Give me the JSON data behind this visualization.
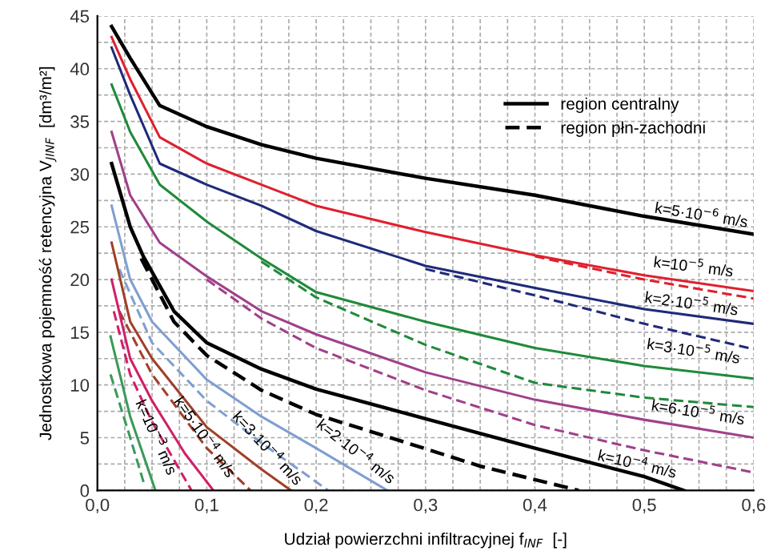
{
  "chart_data": {
    "type": "line",
    "xlabel": "Udział powierzchni infiltracyjnej f$_{INF}$  [-]",
    "ylabel": "Jednostkowa pojemność retencyjna V$_{JINF}$  [dm³/m²]",
    "xlim": [
      0,
      0.6
    ],
    "ylim": [
      0,
      45
    ],
    "xticks": [
      {
        "value": 0,
        "label": "0,0"
      },
      {
        "value": 0.025,
        "label": null
      },
      {
        "value": 0.05,
        "label": null
      },
      {
        "value": 0.075,
        "label": null
      },
      {
        "value": 0.1,
        "label": "0,1"
      },
      {
        "value": 0.125,
        "label": null
      },
      {
        "value": 0.15,
        "label": null
      },
      {
        "value": 0.175,
        "label": null
      },
      {
        "value": 0.2,
        "label": "0,2"
      },
      {
        "value": 0.225,
        "label": null
      },
      {
        "value": 0.25,
        "label": null
      },
      {
        "value": 0.275,
        "label": null
      },
      {
        "value": 0.3,
        "label": "0,3"
      },
      {
        "value": 0.325,
        "label": null
      },
      {
        "value": 0.35,
        "label": null
      },
      {
        "value": 0.375,
        "label": null
      },
      {
        "value": 0.4,
        "label": "0,4"
      },
      {
        "value": 0.425,
        "label": null
      },
      {
        "value": 0.45,
        "label": null
      },
      {
        "value": 0.475,
        "label": null
      },
      {
        "value": 0.5,
        "label": "0,5"
      },
      {
        "value": 0.525,
        "label": null
      },
      {
        "value": 0.55,
        "label": null
      },
      {
        "value": 0.575,
        "label": null
      },
      {
        "value": 0.6,
        "label": "0,6"
      }
    ],
    "yticks": [
      0,
      {
        "value": 2.5,
        "label": null
      },
      5,
      {
        "value": 7.5,
        "label": null
      },
      10,
      {
        "value": 12.5,
        "label": null
      },
      15,
      {
        "value": 17.5,
        "label": null
      },
      20,
      {
        "value": 22.5,
        "label": null
      },
      25,
      {
        "value": 27.5,
        "label": null
      },
      30,
      {
        "value": 32.5,
        "label": null
      },
      35,
      {
        "value": 37.5,
        "label": null
      },
      40,
      {
        "value": 42.5,
        "label": null
      },
      45
    ],
    "grid": true,
    "legend": "top right",
    "series": [
      {
        "name": "region centralny",
        "color": "#000000",
        "line_style": "solid",
        "x": [
          0.013,
          0.03,
          0.057,
          0.1,
          0.15,
          0.2,
          0.3,
          0.4,
          0.5,
          0.6
        ],
        "values": [
          44,
          41,
          36.5,
          34.5,
          32.8,
          31.5,
          29.6,
          28,
          26,
          24.3
        ]
      },
      {
        "color": "#e0202e",
        "line_style": "solid",
        "x": [
          0.013,
          0.03,
          0.057,
          0.1,
          0.15,
          0.2,
          0.3,
          0.4,
          0.5,
          0.6
        ],
        "values": [
          43,
          39,
          33.5,
          31,
          29,
          27,
          24.5,
          22.3,
          20.4,
          18.9
        ]
      },
      {
        "color": "#e0202e",
        "line_style": "dashed",
        "x": [
          0.4,
          0.5,
          0.6
        ],
        "values": [
          22.2,
          20,
          18.2
        ]
      },
      {
        "color": "#1f2a7a",
        "line_style": "solid",
        "x": [
          0.013,
          0.03,
          0.057,
          0.1,
          0.15,
          0.2,
          0.3,
          0.4,
          0.5,
          0.6
        ],
        "values": [
          42,
          37.5,
          31,
          29,
          27,
          24.6,
          21.3,
          19.2,
          17.2,
          15.8
        ]
      },
      {
        "color": "#1f2a7a",
        "line_style": "dashed",
        "x": [
          0.3,
          0.4,
          0.5,
          0.6
        ],
        "values": [
          21,
          18.5,
          15.8,
          13.4
        ]
      },
      {
        "color": "#1f8a3a",
        "line_style": "solid",
        "x": [
          0.013,
          0.03,
          0.057,
          0.1,
          0.15,
          0.2,
          0.3,
          0.4,
          0.5,
          0.6
        ],
        "values": [
          38.5,
          34,
          29,
          25.5,
          22,
          18.8,
          16,
          13.5,
          11.8,
          10.6
        ]
      },
      {
        "color": "#1f8a3a",
        "line_style": "dashed",
        "x": [
          0.15,
          0.2,
          0.3,
          0.4,
          0.5,
          0.6
        ],
        "values": [
          21.7,
          18.3,
          13.8,
          10.2,
          8.8,
          7.9
        ]
      },
      {
        "color": "#a0408a",
        "line_style": "solid",
        "x": [
          0.013,
          0.03,
          0.057,
          0.1,
          0.15,
          0.2,
          0.3,
          0.4,
          0.5,
          0.6
        ],
        "values": [
          34,
          28,
          23.5,
          20.3,
          17,
          14.8,
          11.2,
          8.6,
          6.7,
          5
        ]
      },
      {
        "color": "#a0408a",
        "line_style": "dashed",
        "x": [
          0.1,
          0.15,
          0.2,
          0.3,
          0.4,
          0.5,
          0.6
        ],
        "values": [
          20,
          16.3,
          13.5,
          9.5,
          6.2,
          3.8,
          1.7
        ]
      },
      {
        "color": "#000000",
        "line_style": "solid",
        "x": [
          0.013,
          0.03,
          0.042,
          0.07,
          0.1,
          0.15,
          0.2,
          0.3,
          0.4,
          0.5,
          0.536
        ],
        "values": [
          31,
          25,
          22.2,
          17,
          14,
          11.5,
          9.6,
          6.8,
          4,
          1.3,
          0
        ]
      },
      {
        "name": "region płn-zachodni",
        "color": "#000000",
        "line_style": "dashed",
        "x": [
          0.04,
          0.07,
          0.1,
          0.15,
          0.2,
          0.277,
          0.35,
          0.44
        ],
        "values": [
          22,
          16,
          12.8,
          9.5,
          7.2,
          4.7,
          2.3,
          0
        ]
      },
      {
        "color": "#7f9fd0",
        "line_style": "solid",
        "x": [
          0.013,
          0.03,
          0.05,
          0.1,
          0.15,
          0.2,
          0.265
        ],
        "values": [
          27,
          20,
          16,
          10.5,
          7,
          4,
          0
        ]
      },
      {
        "color": "#7f9fd0",
        "line_style": "dashed",
        "x": [
          0.02,
          0.05,
          0.1,
          0.15,
          0.211
        ],
        "values": [
          21,
          14,
          8.5,
          4.5,
          0
        ]
      },
      {
        "color": "#a0402a",
        "line_style": "solid",
        "x": [
          0.013,
          0.03,
          0.05,
          0.1,
          0.15,
          0.177
        ],
        "values": [
          23.5,
          16,
          12.5,
          6,
          2,
          0
        ]
      },
      {
        "color": "#a0402a",
        "line_style": "dashed",
        "x": [
          0.02,
          0.05,
          0.1,
          0.14
        ],
        "values": [
          17,
          11,
          4,
          0
        ]
      },
      {
        "color": "#d0206a",
        "line_style": "solid",
        "x": [
          0.013,
          0.03,
          0.05,
          0.08,
          0.106
        ],
        "values": [
          20,
          12.5,
          8.5,
          3.5,
          0
        ]
      },
      {
        "color": "#d0206a",
        "line_style": "dashed",
        "x": [
          0.015,
          0.03,
          0.05,
          0.086
        ],
        "values": [
          17,
          11,
          6.5,
          0
        ]
      },
      {
        "color": "#3a9a5a",
        "line_style": "solid",
        "x": [
          0.012,
          0.03,
          0.053
        ],
        "values": [
          14.6,
          7,
          0
        ]
      },
      {
        "color": "#3a9a5a",
        "line_style": "dashed",
        "x": [
          0.012,
          0.03,
          0.043
        ],
        "values": [
          11,
          5,
          0.5
        ]
      }
    ],
    "annotations": [
      "k=5·10$^{−6}$ m/s",
      "k=10$^{−5}$ m/s",
      "k=2·10$^{−5}$ m/s",
      "k=3·10$^{−5}$ m/s",
      "k=6·10$^{−5}$ m/s",
      "k=10$^{−4}$ m/s",
      "k=2·10$^{−4}$ m/s",
      "k=3·10$^{−4}$ m/s",
      "k=5·10$^{−4}$ m/s",
      "k=10$^{−3}$ m/s"
    ]
  }
}
